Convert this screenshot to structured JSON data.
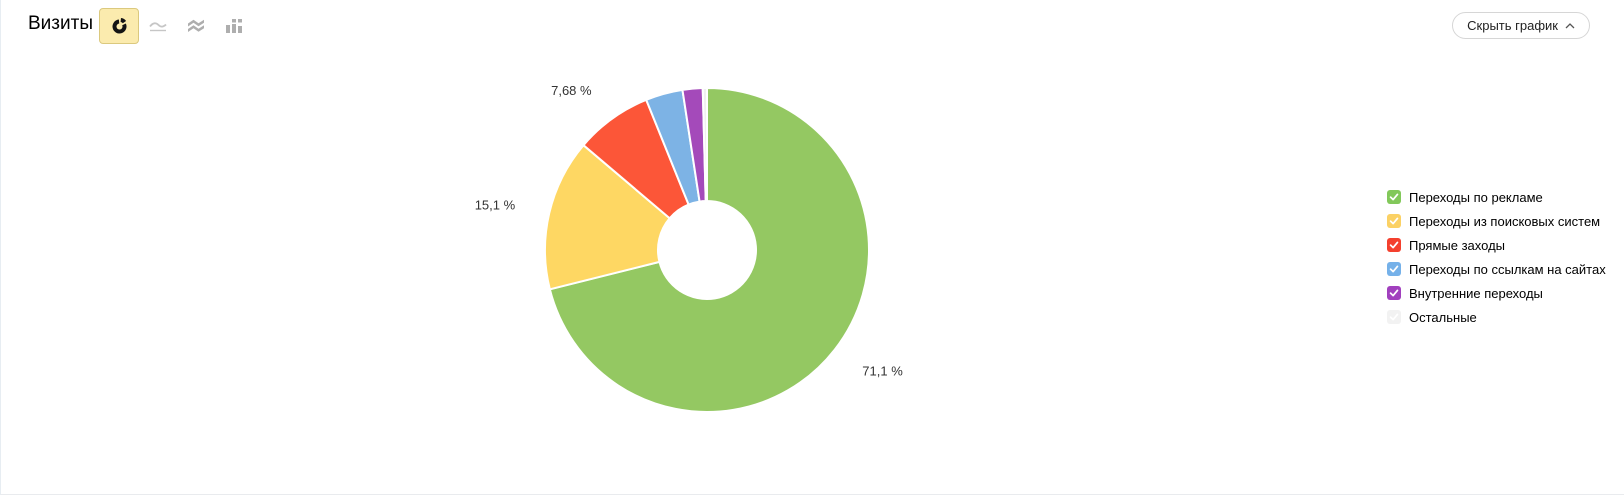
{
  "panel": {
    "title": "Визиты",
    "hide_chart_button": "Скрыть график"
  },
  "chart_type_switcher": {
    "options": [
      {
        "id": "donut",
        "icon": "donut-chart-icon",
        "selected": true
      },
      {
        "id": "line",
        "icon": "line-chart-icon",
        "selected": false
      },
      {
        "id": "stacked-area",
        "icon": "stacked-area-chart-icon",
        "selected": false
      },
      {
        "id": "columns",
        "icon": "column-chart-icon",
        "selected": false
      }
    ],
    "selected_bg": "#FBEBAE",
    "selected_border": "#DBC97E"
  },
  "chart_data": {
    "type": "pie",
    "subtype": "donut",
    "title": "Визиты",
    "legend_position": "right",
    "start_angle_deg": 0,
    "direction": "clockwise",
    "inner_radius_ratio": 0.3,
    "slices": [
      {
        "label": "Переходы по рекламе",
        "value": 71.1,
        "percent_label": "71,1 %",
        "color": "#94C862"
      },
      {
        "label": "Переходы из поисковых систем",
        "value": 15.1,
        "percent_label": "15,1 %",
        "color": "#FED763"
      },
      {
        "label": "Прямые заходы",
        "value": 7.68,
        "percent_label": "7,68 %",
        "color": "#FC5638"
      },
      {
        "label": "Переходы по ссылкам на сайтах",
        "value": 3.7,
        "percent_label": "",
        "color": "#7DB3E5"
      },
      {
        "label": "Внутренние переходы",
        "value": 2.0,
        "percent_label": "",
        "color": "#A44ABA"
      },
      {
        "label": "Остальные",
        "value": 0.42,
        "percent_label": "",
        "color": "#F0F0F0"
      }
    ],
    "label_color": "#333333"
  },
  "legend": {
    "items": [
      {
        "label": "Переходы по рекламе",
        "color": "#82C85A",
        "checked": true
      },
      {
        "label": "Переходы из поисковых систем",
        "color": "#FBD164",
        "checked": true
      },
      {
        "label": "Прямые заходы",
        "color": "#F4402E",
        "checked": true
      },
      {
        "label": "Переходы по ссылкам на сайтах",
        "color": "#75B1E9",
        "checked": true
      },
      {
        "label": "Внутренние переходы",
        "color": "#A140BE",
        "checked": true
      },
      {
        "label": "Остальные",
        "color": "#F2F2F2",
        "checked": true
      }
    ]
  }
}
